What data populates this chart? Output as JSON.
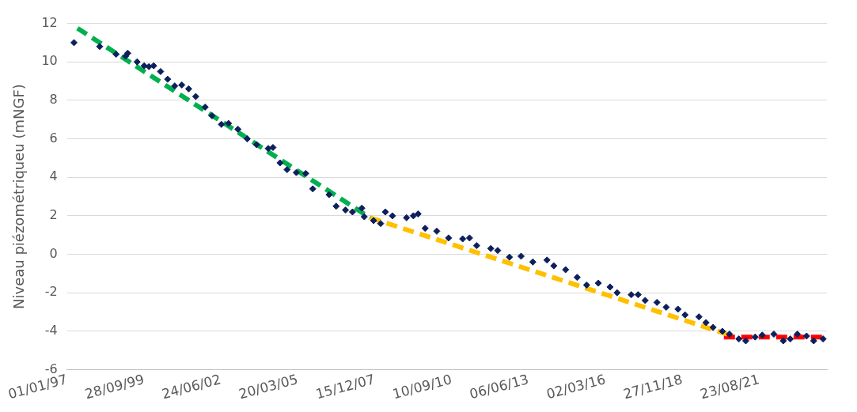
{
  "chart_data": {
    "type": "scatter",
    "ylabel": "Niveau piézométriqueu (mNGF)",
    "xlim": [
      "1997-01-01",
      "2024-01-20"
    ],
    "xticks": [
      {
        "value": "1997-01-01",
        "label": "01/01/97"
      },
      {
        "value": "1999-09-28",
        "label": "28/09/99"
      },
      {
        "value": "2002-06-24",
        "label": "24/06/02"
      },
      {
        "value": "2005-03-20",
        "label": "20/03/05"
      },
      {
        "value": "2007-12-15",
        "label": "15/12/07"
      },
      {
        "value": "2010-09-10",
        "label": "10/09/10"
      },
      {
        "value": "2013-06-06",
        "label": "06/06/13"
      },
      {
        "value": "2016-03-02",
        "label": "02/03/16"
      },
      {
        "value": "2018-11-27",
        "label": "27/11/18"
      },
      {
        "value": "2021-08-23",
        "label": "23/08/21"
      }
    ],
    "ylim": [
      -6,
      12
    ],
    "yticks": [
      -6,
      -4,
      -2,
      0,
      2,
      4,
      6,
      8,
      10,
      12
    ],
    "grid": "y",
    "legend": false,
    "marker": "diamond",
    "series": [
      {
        "color": "#0d1f5c",
        "x": [
          "1997-04",
          "1998-03",
          "1998-10",
          "1999-02",
          "1999-03",
          "1999-07",
          "1999-10",
          "1999-12",
          "2000-02",
          "2000-05",
          "2000-08",
          "2000-11",
          "2001-02",
          "2001-05",
          "2001-08",
          "2001-12",
          "2002-03",
          "2002-07",
          "2002-10",
          "2003-02",
          "2003-06",
          "2003-10",
          "2004-03",
          "2004-05",
          "2004-08",
          "2004-11",
          "2005-03",
          "2005-07",
          "2005-10",
          "2006-05",
          "2006-08",
          "2006-12",
          "2007-03",
          "2007-07",
          "2007-08",
          "2007-12",
          "2008-03",
          "2008-05",
          "2008-08",
          "2009-02",
          "2009-05",
          "2009-07",
          "2009-10",
          "2010-03",
          "2010-08",
          "2011-02",
          "2011-05",
          "2011-08",
          "2012-02",
          "2012-05",
          "2012-10",
          "2013-03",
          "2013-08",
          "2014-02",
          "2014-05",
          "2014-10",
          "2015-03",
          "2015-07",
          "2015-12",
          "2016-05",
          "2016-08",
          "2017-02",
          "2017-05",
          "2017-08",
          "2018-01",
          "2018-05",
          "2018-10",
          "2019-01",
          "2019-07",
          "2019-10",
          "2020-01",
          "2020-05",
          "2020-08",
          "2020-12",
          "2021-03",
          "2021-07",
          "2021-10",
          "2022-03",
          "2022-07",
          "2022-10",
          "2023-01",
          "2023-05",
          "2023-08",
          "2023-12"
        ],
        "values": [
          11.0,
          10.8,
          10.4,
          10.3,
          10.45,
          10.0,
          9.8,
          9.75,
          9.8,
          9.5,
          9.1,
          8.75,
          8.8,
          8.6,
          8.2,
          7.65,
          7.2,
          6.75,
          6.8,
          6.5,
          6.0,
          5.7,
          5.5,
          5.55,
          4.75,
          4.4,
          4.25,
          4.2,
          3.4,
          3.1,
          2.5,
          2.3,
          2.2,
          2.4,
          1.95,
          1.75,
          1.6,
          2.2,
          2.0,
          1.9,
          2.0,
          2.1,
          1.35,
          1.2,
          0.85,
          0.8,
          0.85,
          0.45,
          0.3,
          0.2,
          -0.15,
          -0.1,
          -0.4,
          -0.3,
          -0.6,
          -0.8,
          -1.2,
          -1.6,
          -1.5,
          -1.7,
          -2.0,
          -2.1,
          -2.1,
          -2.4,
          -2.5,
          -2.75,
          -2.85,
          -3.15,
          -3.25,
          -3.55,
          -3.8,
          -4.0,
          -4.15,
          -4.4,
          -4.5,
          -4.3,
          -4.2,
          -4.15,
          -4.5,
          -4.4,
          -4.15,
          -4.25,
          -4.5,
          -4.4
        ]
      },
      {
        "type": "line",
        "color": "#00b050",
        "line_style": "dashed",
        "marker": "none",
        "x": [
          "1997-05-16",
          "2007-10-15"
        ],
        "values": [
          11.75,
          1.9
        ]
      },
      {
        "type": "line",
        "color": "#ffc000",
        "line_style": "dashed",
        "marker": "none",
        "x": [
          "2007-10-15",
          "2020-06-30"
        ],
        "values": [
          1.9,
          -4.15
        ]
      },
      {
        "type": "line",
        "color": "#ff0000",
        "line_style": "dashed",
        "marker": "none",
        "x": [
          "2020-05-20",
          "2024-01-20"
        ],
        "values": [
          -4.3,
          -4.3
        ]
      }
    ]
  }
}
